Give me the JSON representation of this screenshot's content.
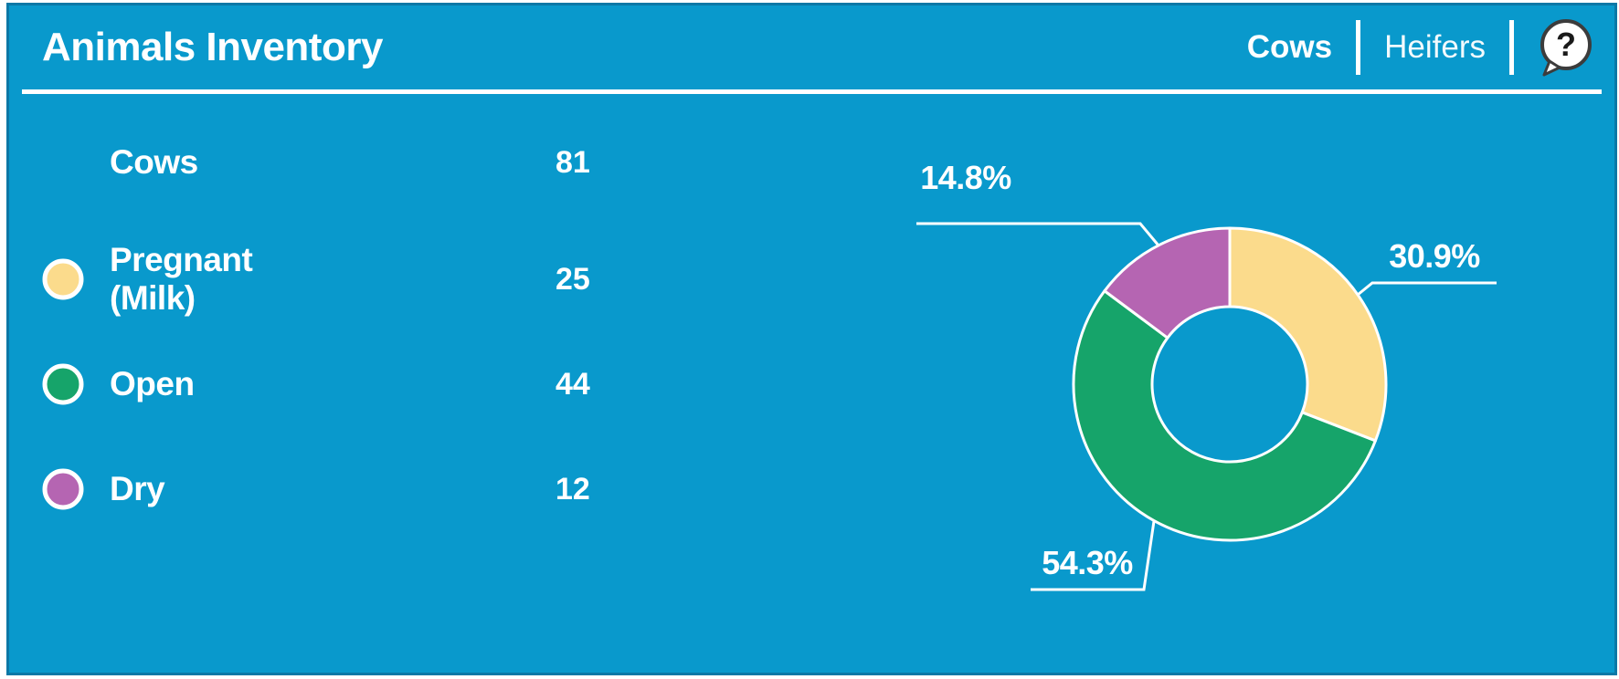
{
  "header": {
    "title": "Animals Inventory",
    "tabs": [
      {
        "label": "Cows",
        "active": true
      },
      {
        "label": "Heifers",
        "active": false
      }
    ],
    "help_icon_glyph": "?"
  },
  "legend": {
    "total": {
      "label": "Cows",
      "value": "81"
    },
    "items": [
      {
        "label": "Pregnant (Milk)",
        "value": "25",
        "color": "#FBDB8C"
      },
      {
        "label": "Open",
        "value": "44",
        "color": "#16A46A"
      },
      {
        "label": "Dry",
        "value": "12",
        "color": "#B565B2"
      }
    ]
  },
  "chart_data": {
    "type": "pie",
    "subtype": "donut",
    "title": "Animals Inventory",
    "total_label": "Cows",
    "total_value": 81,
    "categories": [
      "Pregnant (Milk)",
      "Open",
      "Dry"
    ],
    "values": [
      25,
      44,
      12
    ],
    "percentages": [
      30.9,
      54.3,
      14.8
    ],
    "percentage_labels": [
      "30.9%",
      "54.3%",
      "14.8%"
    ],
    "colors": [
      "#FBDB8C",
      "#16A46A",
      "#B565B2"
    ],
    "start_angle_deg": 0,
    "direction": "clockwise",
    "donut_hole_ratio": 0.5,
    "legend_position": "left",
    "slice_border_color": "#FFFFFF"
  },
  "colors": {
    "card_background": "#0999CC",
    "card_border": "#0C78A6",
    "text": "#FFFFFF"
  }
}
